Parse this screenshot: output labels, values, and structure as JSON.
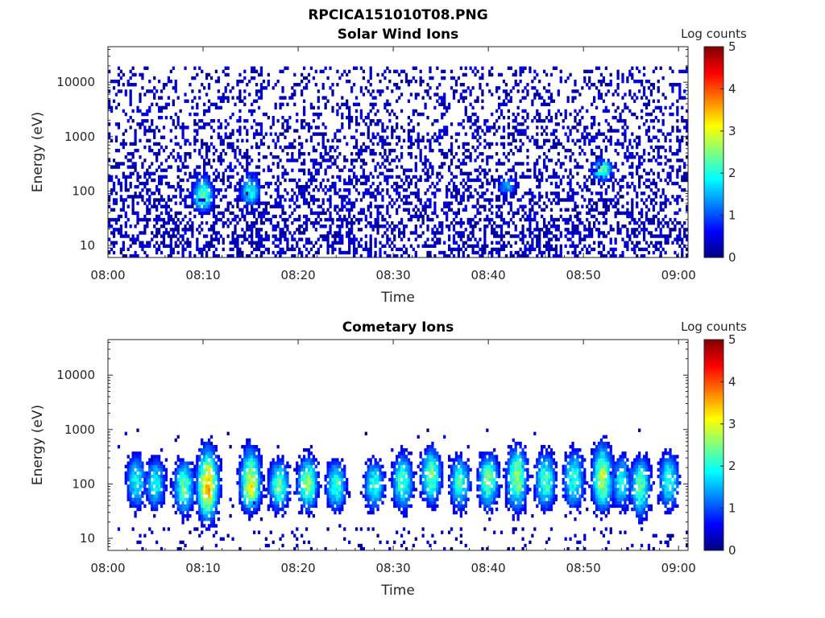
{
  "figure_title": "RPCICA151010T08.PNG",
  "chart_data": [
    {
      "type": "heatmap",
      "title": "Solar Wind Ions",
      "xlabel": "Time",
      "ylabel": "Energy (eV)",
      "x_ticks": [
        "08:00",
        "08:10",
        "08:20",
        "08:30",
        "08:40",
        "08:50",
        "09:00"
      ],
      "x_range": [
        "08:00",
        "09:01"
      ],
      "y_scale": "log",
      "y_ticks": [
        10,
        100,
        1000,
        10000
      ],
      "y_tick_labels": [
        "10",
        "100",
        "1000",
        "10000"
      ],
      "y_range": [
        6,
        45000
      ],
      "colorbar": {
        "label": "Log counts",
        "range": [
          0,
          5
        ],
        "ticks": [
          "0",
          "1",
          "2",
          "3",
          "4",
          "5"
        ],
        "colormap": "jet"
      },
      "background_noise": {
        "energy_range": [
          6,
          20000
        ],
        "log_counts": [
          0,
          1
        ]
      },
      "features": [
        {
          "time": "08:10",
          "energy_center": 80,
          "energy_span": [
            40,
            200
          ],
          "peak_log_counts": 2.5
        },
        {
          "time": "08:15",
          "energy_center": 90,
          "energy_span": [
            50,
            250
          ],
          "peak_log_counts": 2
        },
        {
          "time": "08:42",
          "energy_center": 120,
          "energy_span": [
            80,
            200
          ],
          "peak_log_counts": 1.5
        },
        {
          "time": "08:52",
          "energy_center": 250,
          "energy_span": [
            150,
            400
          ],
          "peak_log_counts": 2.5
        }
      ]
    },
    {
      "type": "heatmap",
      "title": "Cometary Ions",
      "xlabel": "Time",
      "ylabel": "Energy (eV)",
      "x_ticks": [
        "08:00",
        "08:10",
        "08:20",
        "08:30",
        "08:40",
        "08:50",
        "09:00"
      ],
      "x_range": [
        "08:00",
        "09:01"
      ],
      "y_scale": "log",
      "y_ticks": [
        10,
        100,
        1000,
        10000
      ],
      "y_tick_labels": [
        "10",
        "100",
        "1000",
        "10000"
      ],
      "y_range": [
        6,
        45000
      ],
      "colorbar": {
        "label": "Log counts",
        "range": [
          0,
          5
        ],
        "ticks": [
          "0",
          "1",
          "2",
          "3",
          "4",
          "5"
        ],
        "colormap": "jet"
      },
      "features": [
        {
          "time": "08:03",
          "energy_center": 110,
          "energy_span": [
            30,
            400
          ],
          "peak_log_counts": 2
        },
        {
          "time": "08:05",
          "energy_center": 100,
          "energy_span": [
            30,
            350
          ],
          "peak_log_counts": 2
        },
        {
          "time": "08:08",
          "energy_center": 90,
          "energy_span": [
            25,
            300
          ],
          "peak_log_counts": 2.5
        },
        {
          "time": "08:10.5",
          "energy_center": 90,
          "energy_span": [
            20,
            500
          ],
          "peak_log_counts": 3.7
        },
        {
          "time": "08:15",
          "energy_center": 90,
          "energy_span": [
            30,
            500
          ],
          "peak_log_counts": 3.2
        },
        {
          "time": "08:18",
          "energy_center": 90,
          "energy_span": [
            30,
            300
          ],
          "peak_log_counts": 2.5
        },
        {
          "time": "08:21",
          "energy_center": 100,
          "energy_span": [
            30,
            350
          ],
          "peak_log_counts": 2.7
        },
        {
          "time": "08:24",
          "energy_center": 90,
          "energy_span": [
            30,
            300
          ],
          "peak_log_counts": 2.3
        },
        {
          "time": "08:28",
          "energy_center": 100,
          "energy_span": [
            30,
            300
          ],
          "peak_log_counts": 2.2
        },
        {
          "time": "08:31",
          "energy_center": 110,
          "energy_span": [
            30,
            400
          ],
          "peak_log_counts": 2.4
        },
        {
          "time": "08:34",
          "energy_center": 150,
          "energy_span": [
            40,
            500
          ],
          "peak_log_counts": 2.6
        },
        {
          "time": "08:37",
          "energy_center": 110,
          "energy_span": [
            30,
            350
          ],
          "peak_log_counts": 2.3
        },
        {
          "time": "08:40",
          "energy_center": 130,
          "energy_span": [
            30,
            400
          ],
          "peak_log_counts": 2.6
        },
        {
          "time": "08:43",
          "energy_center": 130,
          "energy_span": [
            30,
            550
          ],
          "peak_log_counts": 2.8
        },
        {
          "time": "08:46",
          "energy_center": 110,
          "energy_span": [
            30,
            450
          ],
          "peak_log_counts": 2.4
        },
        {
          "time": "08:49",
          "energy_center": 130,
          "energy_span": [
            30,
            450
          ],
          "peak_log_counts": 2.3
        },
        {
          "time": "08:52",
          "energy_center": 120,
          "energy_span": [
            30,
            600
          ],
          "peak_log_counts": 3.0
        },
        {
          "time": "08:54",
          "energy_center": 110,
          "energy_span": [
            30,
            400
          ],
          "peak_log_counts": 2.0
        },
        {
          "time": "08:56",
          "energy_center": 100,
          "energy_span": [
            20,
            350
          ],
          "peak_log_counts": 2.4
        },
        {
          "time": "08:59",
          "energy_center": 120,
          "energy_span": [
            30,
            400
          ],
          "peak_log_counts": 2.2
        }
      ]
    }
  ]
}
